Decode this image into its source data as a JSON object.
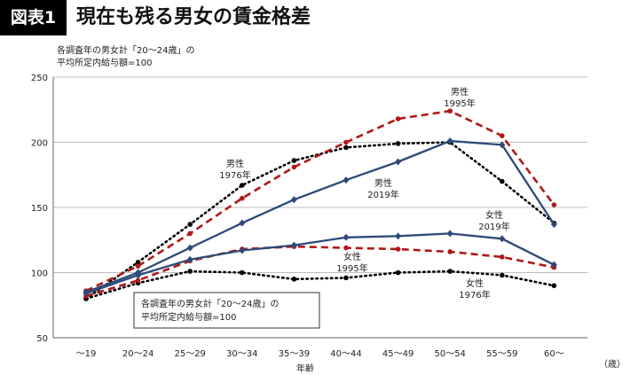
{
  "header": {
    "badge": "図表1",
    "title": "現在も残る男女の賃金格差"
  },
  "note_top": {
    "line1": "各調査年の男女計「20～24歳」の",
    "line2": "平均所定内給与額=100"
  },
  "chart_data": {
    "type": "line",
    "title": "現在も残る男女の賃金格差",
    "xlabel": "年齢",
    "x_unit": "（歳）",
    "ylabel": "",
    "ylim": [
      50,
      250
    ],
    "yticks": [
      50,
      100,
      150,
      200,
      250
    ],
    "grid": true,
    "categories": [
      "～19",
      "20～24",
      "25～29",
      "30～34",
      "35～39",
      "40～44",
      "45～49",
      "50～54",
      "55～59",
      "60～"
    ],
    "series": [
      {
        "name": "男性 1976年",
        "label_lines": [
          "男性",
          "1976年"
        ],
        "color": "#000000",
        "style": "dotted",
        "values": [
          80,
          108,
          137,
          167,
          186,
          196,
          199,
          200,
          170,
          138
        ]
      },
      {
        "name": "男性 1995年",
        "label_lines": [
          "男性",
          "1995年"
        ],
        "color": "#b01818",
        "style": "dashed",
        "values": [
          86,
          105,
          130,
          157,
          181,
          200,
          218,
          224,
          205,
          152
        ]
      },
      {
        "name": "男性 2019年",
        "label_lines": [
          "男性",
          "2019年"
        ],
        "color": "#2e4a78",
        "style": "solid",
        "values": [
          85,
          100,
          119,
          138,
          156,
          171,
          185,
          201,
          198,
          137
        ]
      },
      {
        "name": "女性 1976年",
        "label_lines": [
          "女性",
          "1976年"
        ],
        "color": "#000000",
        "style": "dotted",
        "values": [
          80,
          92,
          101,
          100,
          95,
          96,
          100,
          101,
          98,
          90
        ]
      },
      {
        "name": "女性 1995年",
        "label_lines": [
          "女性",
          "1995年"
        ],
        "color": "#b01818",
        "style": "dashed",
        "values": [
          82,
          94,
          109,
          118,
          120,
          119,
          118,
          116,
          112,
          104
        ]
      },
      {
        "name": "女性 2019年",
        "label_lines": [
          "女性",
          "2019年"
        ],
        "color": "#2e4a78",
        "style": "solid",
        "values": [
          84,
          98,
          110,
          117,
          121,
          127,
          128,
          130,
          126,
          106
        ]
      }
    ],
    "annotation_box": {
      "line1": "各調査年の男女計「20～24歳」の",
      "line2": "平均所定内給与額=100"
    }
  }
}
